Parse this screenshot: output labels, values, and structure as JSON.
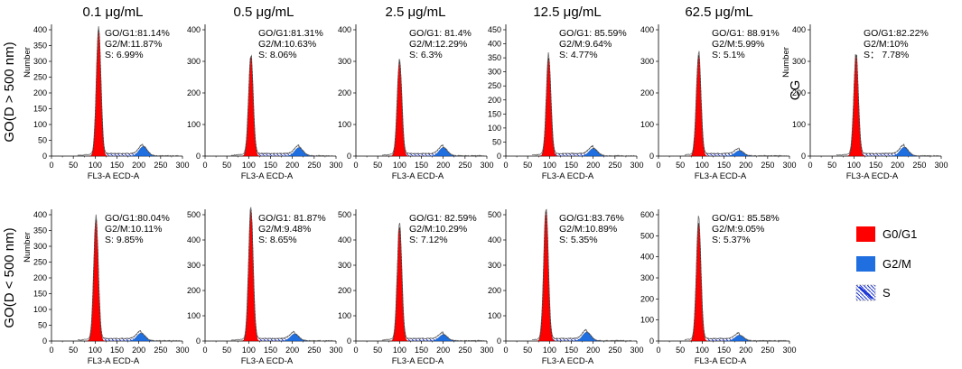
{
  "chart_data": {
    "type": "histogram",
    "concentrations": [
      "0.1 μg/mL",
      "0.5 μg/mL",
      "2.5 μg/mL",
      "12.5 μg/mL",
      "62.5 μg/mL"
    ],
    "rows": [
      {
        "label": "GO(D > 500 nm)"
      },
      {
        "label": "GO(D < 500 nm)"
      }
    ],
    "control_label": "CG",
    "xlabel": "FL3-A ECD-A",
    "ylabel": "Number",
    "x_ticks": [
      "0",
      "50",
      "100",
      "150",
      "200",
      "250",
      "300"
    ],
    "xlim": [
      0,
      300
    ],
    "legend": [
      {
        "name": "G0/G1",
        "color": "#ff0000",
        "kind": "fill"
      },
      {
        "name": "G2/M",
        "color": "#1f6fe0",
        "kind": "fill"
      },
      {
        "name": "S",
        "color": "#1a33d6",
        "kind": "hatch"
      }
    ],
    "panels": [
      {
        "row": 0,
        "col": 0,
        "ymax": 400,
        "y_ticks": [
          "0",
          "50",
          "100",
          "150",
          "200",
          "250",
          "300",
          "350",
          "400"
        ],
        "g1_peak_x": 108,
        "g1_peak_height": 400,
        "g2_peak_x": 210,
        "g2_peak_height": 30,
        "stats": [
          "GO/G1:81.14%",
          "G2/M:11.87%",
          "S:  6.99%"
        ]
      },
      {
        "row": 0,
        "col": 1,
        "ymax": 400,
        "y_ticks": [
          "0",
          "100",
          "200",
          "300",
          "400"
        ],
        "g1_peak_x": 105,
        "g1_peak_height": 315,
        "g2_peak_x": 215,
        "g2_peak_height": 27,
        "stats": [
          "GO/G1:81.31%",
          "G2/M:10.63%",
          "S:  8.06%"
        ]
      },
      {
        "row": 0,
        "col": 2,
        "ymax": 400,
        "y_ticks": [
          "0",
          "100",
          "200",
          "300",
          "400"
        ],
        "g1_peak_x": 100,
        "g1_peak_height": 300,
        "g2_peak_x": 200,
        "g2_peak_height": 27,
        "stats": [
          "GO/G1:  81.4%",
          "G2/M:12.29%",
          "S:  6.3%"
        ]
      },
      {
        "row": 0,
        "col": 3,
        "ymax": 450,
        "y_ticks": [
          "0",
          "50",
          "100",
          "150",
          "200",
          "250",
          "300",
          "350",
          "400",
          "450"
        ],
        "g1_peak_x": 98,
        "g1_peak_height": 350,
        "g2_peak_x": 200,
        "g2_peak_height": 27,
        "stats": [
          "GO/G1:  85.59%",
          "G2/M:9.64%",
          "S:  4.77%"
        ]
      },
      {
        "row": 0,
        "col": 4,
        "ymax": 400,
        "y_ticks": [
          "0",
          "100",
          "200",
          "300",
          "400"
        ],
        "g1_peak_x": 92,
        "g1_peak_height": 320,
        "g2_peak_x": 185,
        "g2_peak_height": 17,
        "stats": [
          "GO/G1:  88.91%",
          "G2/M:5.99%",
          "S:  5.1%"
        ]
      },
      {
        "row": 0,
        "col": 5,
        "ymax": 400,
        "y_ticks": [
          "0",
          "100",
          "200",
          "300",
          "400"
        ],
        "g1_peak_x": 105,
        "g1_peak_height": 320,
        "g2_peak_x": 215,
        "g2_peak_height": 28,
        "stats": [
          "GO/G1:82.22%",
          "G2/M:10%",
          "S：  7.78%"
        ]
      },
      {
        "row": 1,
        "col": 0,
        "ymax": 400,
        "y_ticks": [
          "0",
          "50",
          "100",
          "150",
          "200",
          "250",
          "300",
          "350",
          "400"
        ],
        "g1_peak_x": 102,
        "g1_peak_height": 385,
        "g2_peak_x": 205,
        "g2_peak_height": 25,
        "stats": [
          "GO/G1:80.04%",
          "G2/M:10.11%",
          "S:  9.85%"
        ]
      },
      {
        "row": 1,
        "col": 1,
        "ymax": 500,
        "y_ticks": [
          "0",
          "100",
          "200",
          "300",
          "400",
          "500"
        ],
        "g1_peak_x": 105,
        "g1_peak_height": 520,
        "g2_peak_x": 205,
        "g2_peak_height": 28,
        "stats": [
          "GO/G1:  81.87%",
          "G2/M:9.48%",
          "S:  8.65%"
        ]
      },
      {
        "row": 1,
        "col": 2,
        "ymax": 500,
        "y_ticks": [
          "0",
          "100",
          "200",
          "300",
          "400",
          "500"
        ],
        "g1_peak_x": 100,
        "g1_peak_height": 450,
        "g2_peak_x": 200,
        "g2_peak_height": 25,
        "stats": [
          "GO/G1:  82.59%",
          "G2/M:10.29%",
          "S:  7.12%"
        ]
      },
      {
        "row": 1,
        "col": 3,
        "ymax": 500,
        "y_ticks": [
          "0",
          "100",
          "200",
          "300",
          "400",
          "500"
        ],
        "g1_peak_x": 92,
        "g1_peak_height": 520,
        "g2_peak_x": 185,
        "g2_peak_height": 35,
        "stats": [
          "GO/G1:83.76%",
          "G2/M:10.89%",
          "S:  5.35%"
        ]
      },
      {
        "row": 1,
        "col": 4,
        "ymax": 600,
        "y_ticks": [
          "0",
          "100",
          "200",
          "300",
          "400",
          "500",
          "600"
        ],
        "g1_peak_x": 92,
        "g1_peak_height": 560,
        "g2_peak_x": 185,
        "g2_peak_height": 28,
        "stats": [
          "GO/G1:  85.58%",
          "G2/M:9.05%",
          "S:  5.37%"
        ]
      }
    ]
  }
}
